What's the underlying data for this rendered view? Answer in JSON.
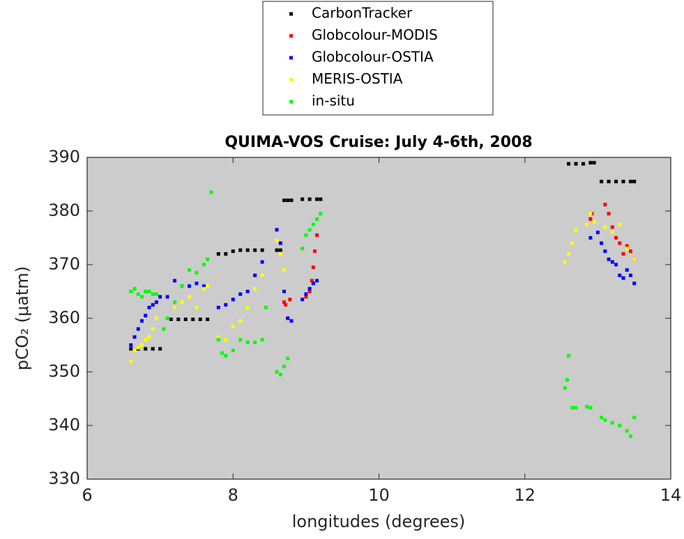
{
  "chart_data": {
    "type": "scatter",
    "title": "QUIMA-VOS Cruise: July 4-6th, 2008",
    "x_label": "longitudes (degrees)",
    "y_label": "pCO₂ (μatm)",
    "xlim": [
      6,
      14
    ],
    "xticks": [
      6,
      8,
      10,
      12,
      14
    ],
    "ylim": [
      330,
      390
    ],
    "yticks": [
      330,
      340,
      350,
      360,
      370,
      380,
      390
    ],
    "legend": "top",
    "series": [
      {
        "name": "CarbonTracker",
        "color": "#000000",
        "x": [
          6.6,
          6.7,
          6.8,
          6.9,
          7.0,
          7.15,
          7.25,
          7.35,
          7.45,
          7.55,
          7.65,
          7.8,
          7.9,
          8.0,
          8.1,
          8.2,
          8.3,
          8.4,
          8.6,
          8.65,
          8.7,
          8.75,
          8.8,
          8.95,
          9.05,
          9.15,
          9.2,
          12.6,
          12.7,
          12.8,
          12.9,
          12.95,
          13.05,
          13.15,
          13.25,
          13.35,
          13.45,
          13.5
        ],
        "values": [
          354.3,
          354.3,
          354.3,
          354.3,
          354.3,
          359.8,
          359.8,
          359.8,
          359.8,
          359.8,
          359.8,
          372,
          372,
          372.5,
          372.7,
          372.7,
          372.7,
          372.7,
          372.7,
          372.7,
          382,
          382,
          382,
          382.2,
          382.2,
          382.2,
          382.2,
          388.8,
          388.8,
          388.8,
          389,
          389,
          385.5,
          385.5,
          385.5,
          385.5,
          385.5,
          385.5
        ]
      },
      {
        "name": "Globcolour-MODIS",
        "color": "#ff0000",
        "x": [
          8.7,
          8.72,
          8.75,
          8.78,
          9.0,
          9.05,
          9.08,
          9.1,
          9.12,
          9.15,
          12.9,
          12.92,
          13.1,
          13.15,
          13.2,
          13.25,
          13.3,
          13.35,
          13.4,
          13.45,
          13.5
        ],
        "values": [
          363,
          362.5,
          360,
          363.5,
          364,
          365,
          367,
          369.5,
          372.5,
          375.5,
          378.5,
          379.5,
          381.2,
          379.5,
          377,
          375,
          374,
          372,
          373.5,
          372.5,
          371
        ]
      },
      {
        "name": "Globcolour-OSTIA",
        "color": "#0000ff",
        "x": [
          6.6,
          6.65,
          6.7,
          6.75,
          6.8,
          6.85,
          6.9,
          6.95,
          7.0,
          7.1,
          7.2,
          7.3,
          7.4,
          7.5,
          7.6,
          7.8,
          7.9,
          8.0,
          8.1,
          8.2,
          8.3,
          8.4,
          8.6,
          8.65,
          8.7,
          8.75,
          8.8,
          8.95,
          9.0,
          9.05,
          9.1,
          9.15,
          12.9,
          13.0,
          13.05,
          13.1,
          13.15,
          13.2,
          13.25,
          13.3,
          13.35,
          13.4,
          13.45,
          13.5
        ],
        "values": [
          355,
          356.5,
          358,
          359.5,
          360.5,
          362,
          362.5,
          363,
          364,
          364,
          367,
          366,
          366,
          366.5,
          366,
          362,
          362.5,
          363.5,
          364.5,
          365,
          368,
          370.5,
          376.5,
          374,
          365,
          360,
          359.5,
          363.5,
          364.5,
          365.5,
          366.5,
          367,
          375,
          376,
          374,
          372.5,
          371,
          370.5,
          370,
          368,
          367.5,
          369,
          368,
          366.5
        ]
      },
      {
        "name": "MERIS-OSTIA",
        "color": "#ffff00",
        "x": [
          6.6,
          6.65,
          6.7,
          6.75,
          6.8,
          6.85,
          6.9,
          6.95,
          7.1,
          7.2,
          7.3,
          7.4,
          7.5,
          7.6,
          7.65,
          7.8,
          7.9,
          8.0,
          8.1,
          8.2,
          8.3,
          8.4,
          8.6,
          8.65,
          8.7,
          12.55,
          12.6,
          12.65,
          12.7,
          12.85,
          12.9,
          12.95,
          13.1,
          13.2,
          13.3,
          13.4,
          13.5
        ],
        "values": [
          352,
          354,
          354.5,
          355,
          356,
          356.5,
          358,
          360,
          360,
          362,
          363,
          364,
          362,
          365.5,
          366,
          356.5,
          356,
          358.5,
          359.5,
          362,
          365.5,
          368,
          374.5,
          372,
          369,
          370.5,
          372,
          374,
          376.5,
          377.5,
          379.5,
          378,
          377,
          376,
          377.5,
          373,
          371
        ]
      },
      {
        "name": "in-situ",
        "color": "#00ff00",
        "x": [
          6.6,
          6.65,
          6.7,
          6.75,
          6.8,
          6.85,
          6.9,
          6.95,
          7.05,
          7.1,
          7.2,
          7.3,
          7.4,
          7.5,
          7.6,
          7.65,
          7.7,
          7.8,
          7.85,
          7.9,
          8.0,
          8.1,
          8.2,
          8.3,
          8.4,
          8.45,
          8.6,
          8.65,
          8.7,
          8.75,
          8.95,
          9.0,
          9.05,
          9.1,
          9.15,
          9.2,
          12.55,
          12.58,
          12.6,
          12.65,
          12.7,
          12.85,
          12.9,
          13.05,
          13.1,
          13.2,
          13.3,
          13.4,
          13.45,
          13.5
        ],
        "values": [
          365,
          365.5,
          364.5,
          364,
          365,
          365,
          364.5,
          364.5,
          358,
          360,
          363,
          366,
          369,
          368.5,
          370,
          371,
          383.5,
          356,
          353.5,
          353,
          354,
          356,
          355.5,
          355.5,
          356,
          362,
          350,
          349.5,
          351,
          352.5,
          373,
          375.5,
          376.5,
          377.5,
          378.5,
          379.5,
          347,
          348.5,
          353,
          343.3,
          343.3,
          343.5,
          343.3,
          341.5,
          341,
          340.5,
          340,
          339,
          338,
          341.5
        ]
      }
    ]
  }
}
